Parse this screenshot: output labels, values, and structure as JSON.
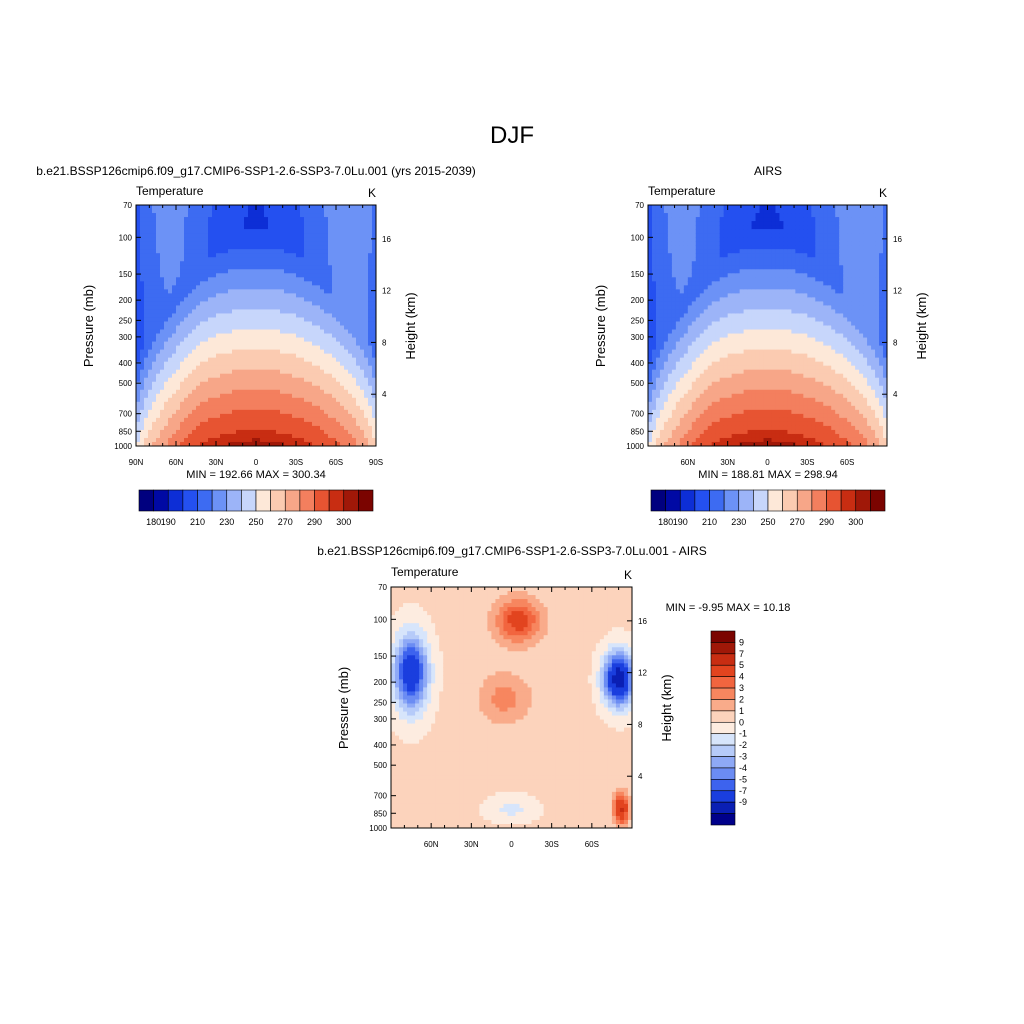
{
  "figure_title": "DJF",
  "chart_data": [
    {
      "type": "heatmap",
      "panel_title": "b.e21.BSSP126cmip6.f09_g17.CMIP6-SSP1-2.6-SSP3-7.0Lu.001 (yrs 2015-2039)",
      "left_string": "Temperature",
      "right_string": "K",
      "ylabel": "Pressure (mb)",
      "y2label": "Height (km)",
      "x_ticks": [
        "90N",
        "60N",
        "30N",
        "0",
        "30S",
        "60S",
        "90S"
      ],
      "y_ticks": [
        "70",
        "100",
        "150",
        "200",
        "250",
        "300",
        "400",
        "500",
        "700",
        "850",
        "1000"
      ],
      "y2_ticks": [
        "16",
        "12",
        "8",
        "4"
      ],
      "stats": "MIN = 192.66  MAX = 300.34",
      "min": 192.66,
      "max": 300.34,
      "colorbar_labels": [
        "180",
        "190",
        "210",
        "230",
        "250",
        "270",
        "290",
        "300"
      ],
      "colorbar_levels": [
        180,
        185,
        190,
        200,
        210,
        220,
        230,
        240,
        250,
        260,
        270,
        280,
        290,
        295,
        300
      ],
      "colors": [
        "#00007f",
        "#0009a4",
        "#0d2ed6",
        "#2450f0",
        "#3d6bf2",
        "#6c92f6",
        "#9cb4f8",
        "#c7d6fb",
        "#fde8d8",
        "#fbcbb1",
        "#f7a688",
        "#f37f5e",
        "#e75432",
        "#c82d12",
        "#a01808",
        "#7b0400"
      ]
    },
    {
      "type": "heatmap",
      "panel_title": "AIRS",
      "left_string": "Temperature",
      "right_string": "K",
      "ylabel": "Pressure (mb)",
      "y2label": "Height (km)",
      "x_ticks": [
        "60N",
        "30N",
        "0",
        "30S",
        "60S"
      ],
      "y_ticks": [
        "70",
        "100",
        "150",
        "200",
        "250",
        "300",
        "400",
        "500",
        "700",
        "850",
        "1000"
      ],
      "y2_ticks": [
        "16",
        "12",
        "8",
        "4"
      ],
      "stats": "MIN = 188.81  MAX = 298.94",
      "min": 188.81,
      "max": 298.94,
      "colorbar_labels": [
        "180",
        "190",
        "210",
        "230",
        "250",
        "270",
        "290",
        "300"
      ]
    },
    {
      "type": "heatmap",
      "panel_title": "b.e21.BSSP126cmip6.f09_g17.CMIP6-SSP1-2.6-SSP3-7.0Lu.001 - AIRS",
      "left_string": "Temperature",
      "right_string": "K",
      "ylabel": "Pressure (mb)",
      "y2label": "Height (km)",
      "x_ticks": [
        "60N",
        "30N",
        "0",
        "30S",
        "60S"
      ],
      "y_ticks": [
        "70",
        "100",
        "150",
        "200",
        "250",
        "300",
        "400",
        "500",
        "700",
        "850",
        "1000"
      ],
      "y2_ticks": [
        "16",
        "12",
        "8",
        "4"
      ],
      "stats": "MIN =  -9.95  MAX =  10.18",
      "min": -9.95,
      "max": 10.18,
      "colorbar_labels": [
        "9",
        "7",
        "5",
        "4",
        "3",
        "2",
        "1",
        "0",
        "-1",
        "-2",
        "-3",
        "-4",
        "-5",
        "-7",
        "-9"
      ],
      "colors": [
        "#7b0400",
        "#a01808",
        "#c82d12",
        "#e2441f",
        "#f2653f",
        "#f7865f",
        "#f9ab8a",
        "#fcd3bc",
        "#fdece0",
        "#d7e5fb",
        "#b6cbf9",
        "#8ea9f6",
        "#6b8cf3",
        "#3d63ee",
        "#1a3ede",
        "#0a1fb4",
        "#00008a"
      ]
    }
  ]
}
